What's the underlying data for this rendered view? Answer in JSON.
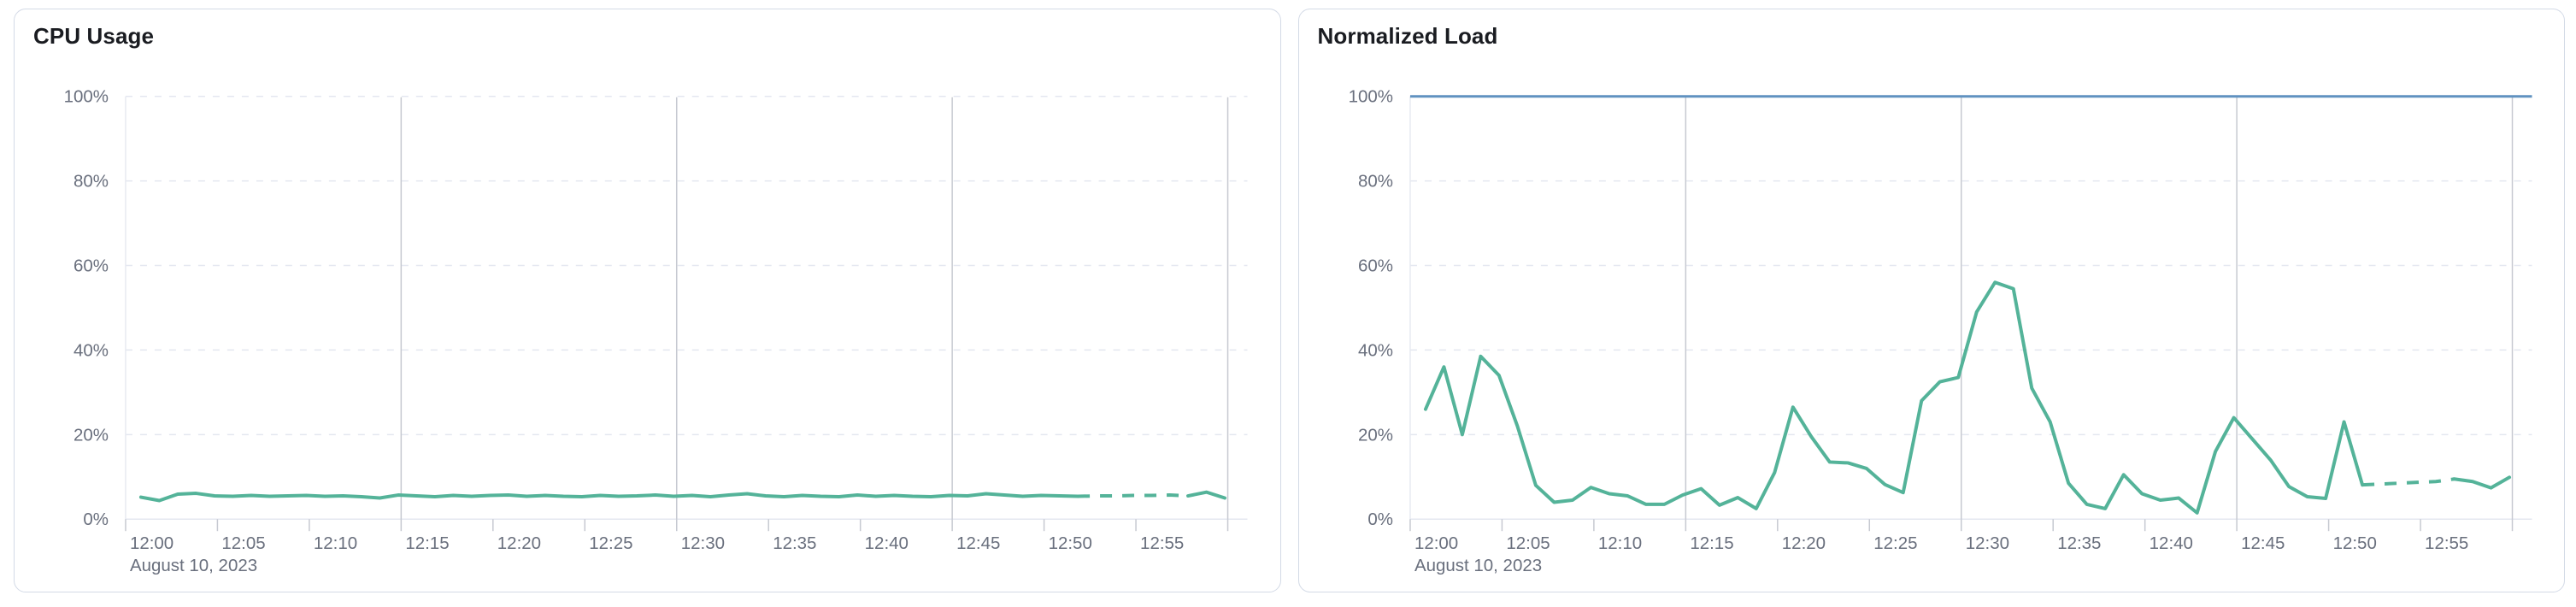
{
  "chart_data": [
    {
      "type": "line",
      "title": "CPU Usage",
      "unit": "%",
      "ylim": [
        0,
        100
      ],
      "grid": "horizontal-dashed, vertical lines every 15 minutes",
      "y_tick_labels": [
        "0%",
        "20%",
        "40%",
        "60%",
        "80%",
        "100%"
      ],
      "x_tick_labels": [
        "12:00",
        "12:05",
        "12:10",
        "12:15",
        "12:20",
        "12:25",
        "12:30",
        "12:35",
        "12:40",
        "12:45",
        "12:50",
        "12:55"
      ],
      "x_axis_date_label": "August 10, 2023",
      "x_start": "12:00",
      "x_interval_minutes": 1,
      "line_color": "#54b399",
      "dashed_segment": {
        "from_index": 51,
        "to_index": 57
      },
      "values": [
        5.2,
        4.4,
        5.9,
        6.1,
        5.5,
        5.4,
        5.6,
        5.4,
        5.5,
        5.6,
        5.4,
        5.5,
        5.3,
        5.0,
        5.7,
        5.5,
        5.3,
        5.6,
        5.4,
        5.6,
        5.7,
        5.4,
        5.6,
        5.4,
        5.3,
        5.6,
        5.4,
        5.5,
        5.7,
        5.4,
        5.6,
        5.3,
        5.7,
        6.0,
        5.5,
        5.3,
        5.6,
        5.4,
        5.3,
        5.7,
        5.4,
        5.6,
        5.4,
        5.3,
        5.6,
        5.5,
        6.0,
        5.7,
        5.4,
        5.6,
        5.5,
        5.4,
        5.5,
        5.5,
        5.6,
        5.6,
        5.7,
        5.5,
        6.4,
        5.0
      ]
    },
    {
      "type": "line",
      "title": "Normalized Load",
      "unit": "%",
      "ylim": [
        0,
        100
      ],
      "grid": "horizontal-dashed, vertical lines every 15 minutes",
      "y_tick_labels": [
        "0%",
        "20%",
        "40%",
        "60%",
        "80%",
        "100%"
      ],
      "x_tick_labels": [
        "12:00",
        "12:05",
        "12:10",
        "12:15",
        "12:20",
        "12:25",
        "12:30",
        "12:35",
        "12:40",
        "12:45",
        "12:50",
        "12:55"
      ],
      "x_axis_date_label": "August 10, 2023",
      "x_start": "12:00",
      "x_interval_minutes": 1,
      "line_color": "#54b399",
      "limit_line": {
        "value": 100,
        "color": "#6092c0"
      },
      "dashed_segment": {
        "from_index": 51,
        "to_index": 56
      },
      "values": [
        26,
        36,
        20,
        38.5,
        34,
        22,
        8,
        4,
        4.5,
        7.5,
        6,
        5.5,
        3.5,
        3.5,
        5.7,
        7.2,
        3.3,
        5.1,
        2.5,
        11,
        26.5,
        19.5,
        13.5,
        13.3,
        12,
        8.2,
        6.3,
        28,
        32.5,
        33.5,
        49,
        56,
        54.5,
        31,
        23,
        8.5,
        3.5,
        2.5,
        10.5,
        6,
        4.5,
        5,
        1.5,
        16,
        24,
        19,
        14,
        7.7,
        5.3,
        4.9,
        23,
        8.1,
        8.3,
        8.5,
        8.7,
        8.9,
        9.5,
        8.9,
        7.4,
        9.9
      ]
    }
  ]
}
